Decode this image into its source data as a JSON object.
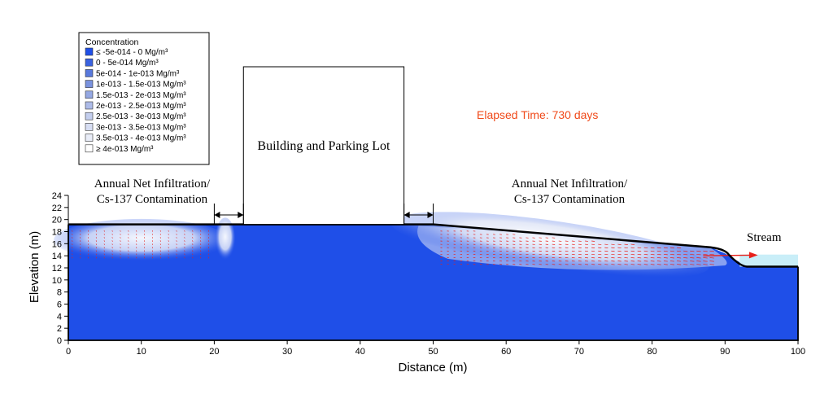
{
  "chart_data": {
    "type": "heatmap",
    "title": "",
    "xlabel": "Distance (m)",
    "ylabel": "Elevation (m)",
    "xlim": [
      0,
      100
    ],
    "ylim": [
      0,
      24
    ],
    "x_ticks": [
      "0",
      "10",
      "20",
      "30",
      "40",
      "50",
      "60",
      "70",
      "80",
      "90",
      "100"
    ],
    "y_ticks": [
      "0",
      "2",
      "4",
      "6",
      "8",
      "10",
      "12",
      "14",
      "16",
      "18",
      "20",
      "22",
      "24"
    ],
    "elapsed_time_label": "Elapsed Time: 730 days",
    "legend": {
      "title": "Concentration",
      "placement": "top-left",
      "entries": [
        {
          "label": "≤ -5e-014 - 0 Mg/m³",
          "color": "#1f4fe8"
        },
        {
          "label": "0 - 5e-014 Mg/m³",
          "color": "#3a62e0"
        },
        {
          "label": "5e-014 - 1e-013 Mg/m³",
          "color": "#5878dc"
        },
        {
          "label": "1e-013 - 1.5e-013 Mg/m³",
          "color": "#7a92de"
        },
        {
          "label": "1.5e-013 - 2e-013 Mg/m³",
          "color": "#95a8e3"
        },
        {
          "label": "2e-013 - 2.5e-013 Mg/m³",
          "color": "#adbbe8"
        },
        {
          "label": "2.5e-013 - 3e-013 Mg/m³",
          "color": "#c3ceee"
        },
        {
          "label": "3e-013 - 3.5e-013 Mg/m³",
          "color": "#d7def3"
        },
        {
          "label": "3.5e-013 - 4e-013 Mg/m³",
          "color": "#e9edf8"
        },
        {
          "label": "≥ 4e-013 Mg/m³",
          "color": "#ffffff"
        }
      ]
    },
    "annotations": {
      "left_zone": [
        "Annual Net Infiltration/",
        "Cs-137 Contamination"
      ],
      "building": "Building and Parking Lot",
      "right_zone": [
        "Annual Net Infiltration/",
        "Cs-137 Contamination"
      ],
      "stream": "Stream"
    },
    "domain_profile": [
      {
        "x": 0,
        "y": 19.2
      },
      {
        "x": 50,
        "y": 19.2
      },
      {
        "x": 88,
        "y": 15.4
      },
      {
        "x": 90,
        "y": 14.4
      },
      {
        "x": 93,
        "y": 12.2
      },
      {
        "x": 100,
        "y": 12.2
      }
    ],
    "building_extent": {
      "x_start": 24,
      "x_end": 46
    },
    "infiltration_zones": [
      {
        "x_start": 0,
        "x_end": 20
      },
      {
        "x_start": 50,
        "x_end": 88
      }
    ],
    "stream_extent": {
      "x_start": 90,
      "x_end": 100,
      "water_level": 14.2
    },
    "colors": {
      "domain_fill": "#1f4fe8",
      "stream": "#c9eef8",
      "arrows": "#e8201a",
      "elapsed_text": "#f04a1a",
      "outline": "#000000"
    }
  }
}
